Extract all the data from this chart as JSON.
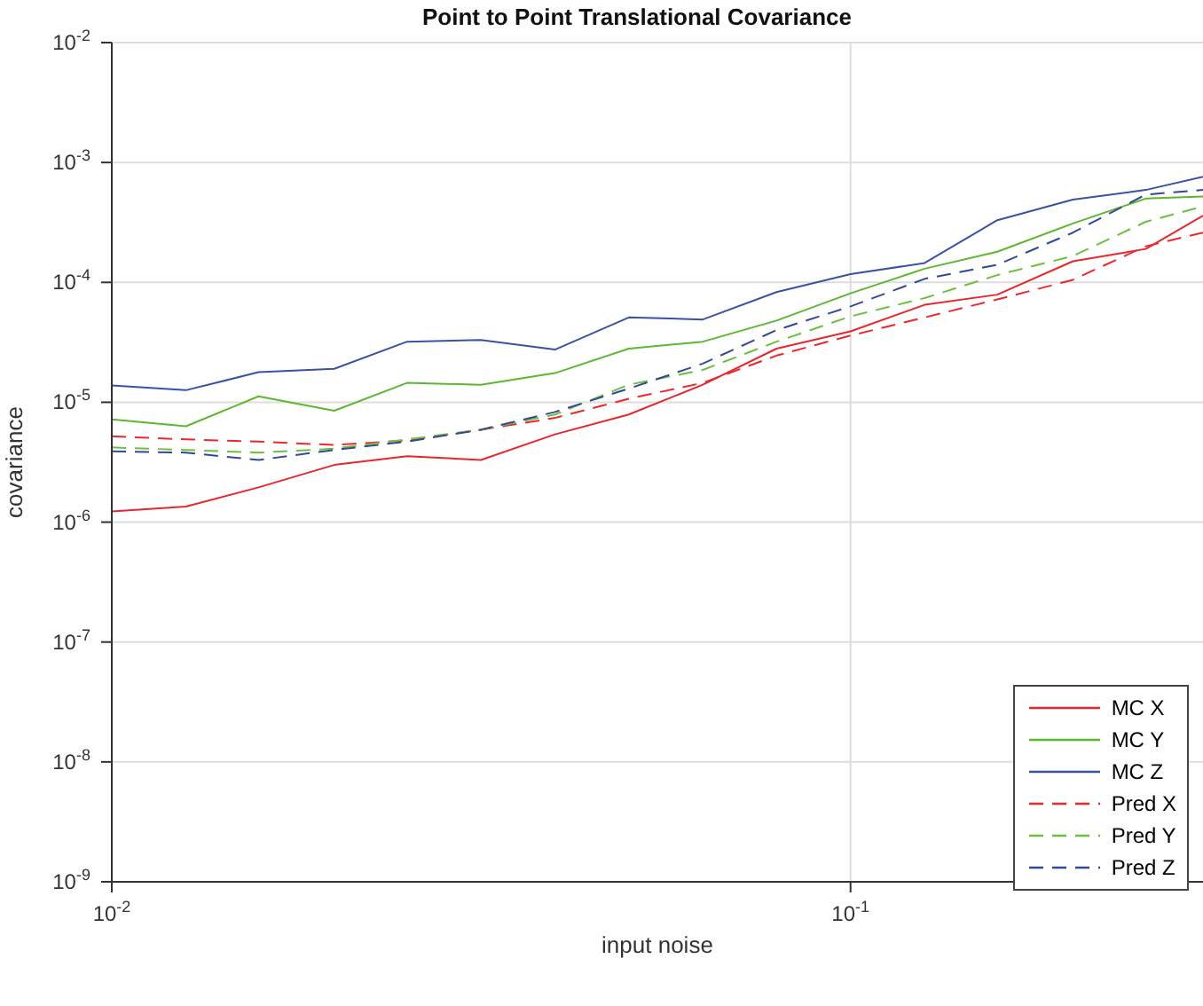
{
  "chart_data": {
    "type": "line",
    "title": "Point to Point Translational Covariance",
    "xlabel": "input noise",
    "ylabel": "covariance",
    "log": "xy",
    "grid": true,
    "legend": "bottom right",
    "marker": "none",
    "x": [
      0.01,
      0.0126,
      0.0158,
      0.02,
      0.0251,
      0.0316,
      0.0398,
      0.0501,
      0.0631,
      0.0794,
      0.1,
      0.126,
      0.158,
      0.2,
      0.251,
      0.3
    ],
    "xlim": [
      0.01,
      0.3
    ],
    "xticks": [
      {
        "value": 0.01,
        "label": "10$^{-2}$"
      },
      {
        "value": 0.1,
        "label": "10$^{-1}$"
      }
    ],
    "ylim": [
      1e-09,
      0.01
    ],
    "yticks": [
      {
        "value": 1e-09,
        "label": "10$^{-9}$"
      },
      {
        "value": 1e-08,
        "label": "10$^{-8}$"
      },
      {
        "value": 1e-07,
        "label": "10$^{-7}$"
      },
      {
        "value": 1e-06,
        "label": "10$^{-6}$"
      },
      {
        "value": 1e-05,
        "label": "10$^{-5}$"
      },
      {
        "value": 0.0001,
        "label": "10$^{-4}$"
      },
      {
        "value": 0.001,
        "label": "10$^{-3}$"
      },
      {
        "value": 0.01,
        "label": "10$^{-2}$"
      }
    ],
    "series": [
      {
        "name": "MC X",
        "color": "#e8262b",
        "line_style": "solid",
        "values": [
          1.23e-06,
          1.35e-06,
          1.95e-06,
          3e-06,
          3.55e-06,
          3.3e-06,
          5.4e-06,
          7.9e-06,
          1.4e-05,
          2.8e-05,
          3.9e-05,
          6.5e-05,
          7.9e-05,
          0.00015,
          0.00019,
          0.00036
        ]
      },
      {
        "name": "MC Y",
        "color": "#5cb82e",
        "line_style": "solid",
        "values": [
          7.2e-06,
          6.3e-06,
          1.12e-05,
          8.5e-06,
          1.45e-05,
          1.4e-05,
          1.75e-05,
          2.8e-05,
          3.2e-05,
          4.8e-05,
          8.1e-05,
          0.00013,
          0.00018,
          0.00031,
          0.0005,
          0.00052
        ]
      },
      {
        "name": "MC Z",
        "color": "#3a52a4",
        "line_style": "solid",
        "values": [
          1.38e-05,
          1.26e-05,
          1.78e-05,
          1.9e-05,
          3.2e-05,
          3.3e-05,
          2.75e-05,
          5.1e-05,
          4.9e-05,
          8.3e-05,
          0.000117,
          0.000145,
          0.00033,
          0.00049,
          0.00059,
          0.00076
        ]
      },
      {
        "name": "Pred X",
        "color": "#f0262b",
        "line_style": "dashed",
        "values": [
          5.2e-06,
          4.9e-06,
          4.7e-06,
          4.4e-06,
          4.8e-06,
          5.9e-06,
          7.4e-06,
          1.07e-05,
          1.45e-05,
          2.45e-05,
          3.6e-05,
          5.1e-05,
          7.2e-05,
          0.000105,
          0.0002,
          0.00026
        ]
      },
      {
        "name": "Pred Y",
        "color": "#6cc03e",
        "line_style": "dashed",
        "values": [
          4.2e-06,
          4e-06,
          3.8e-06,
          4.1e-06,
          4.9e-06,
          5.9e-06,
          7.9e-06,
          1.4e-05,
          1.86e-05,
          3.2e-05,
          5.2e-05,
          7.4e-05,
          0.000115,
          0.000166,
          0.00032,
          0.00043
        ]
      },
      {
        "name": "Pred Z",
        "color": "#34489a",
        "line_style": "dashed",
        "values": [
          3.9e-06,
          3.8e-06,
          3.3e-06,
          4e-06,
          4.7e-06,
          5.9e-06,
          8.3e-06,
          1.3e-05,
          2.1e-05,
          4e-05,
          6.3e-05,
          0.000107,
          0.00014,
          0.00026,
          0.00054,
          0.00059
        ]
      }
    ]
  }
}
